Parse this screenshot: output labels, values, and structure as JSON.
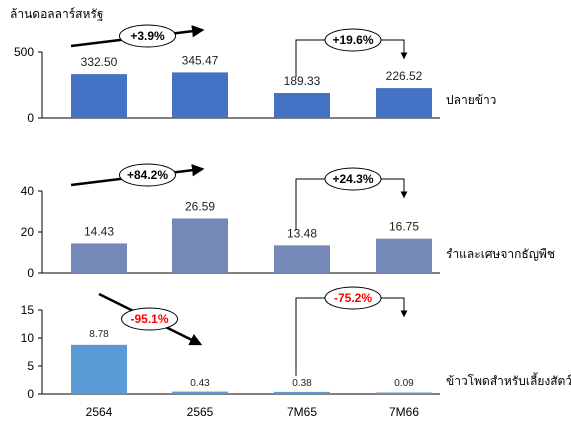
{
  "chart_data": {
    "type": "bar",
    "unit_label": "ล้านดอลลาร์สหรัฐ",
    "categories": [
      "2564",
      "2565",
      "7M65",
      "7M66"
    ],
    "panels": [
      {
        "name": "ปลายข้าว",
        "values": [
          332.5,
          345.47,
          189.33,
          226.52
        ],
        "value_labels": [
          "332.50",
          "345.47",
          "189.33",
          "226.52"
        ],
        "ylim": [
          0,
          500
        ],
        "yticks": [
          "0",
          "500"
        ],
        "ytick_values": [
          0,
          500
        ],
        "color": "#4472C4",
        "changes": [
          {
            "label": "+3.9%",
            "color": "#000000",
            "between": [
              0,
              1
            ],
            "style": "arrow-up"
          },
          {
            "label": "+19.6%",
            "color": "#000000",
            "between": [
              2,
              3
            ],
            "style": "bracket"
          }
        ]
      },
      {
        "name": "รำและเศษจากธัญพืช",
        "values": [
          14.43,
          26.59,
          13.48,
          16.75
        ],
        "value_labels": [
          "14.43",
          "26.59",
          "13.48",
          "16.75"
        ],
        "ylim": [
          0,
          40
        ],
        "yticks": [
          "0",
          "20",
          "40"
        ],
        "ytick_values": [
          0,
          20,
          40
        ],
        "color": "#7589B8",
        "changes": [
          {
            "label": "+84.2%",
            "color": "#000000",
            "between": [
              0,
              1
            ],
            "style": "arrow-up"
          },
          {
            "label": "+24.3%",
            "color": "#000000",
            "between": [
              2,
              3
            ],
            "style": "bracket"
          }
        ]
      },
      {
        "name": "ข้าวโพดสำหรับเลี้ยงสัตว์",
        "values": [
          8.78,
          0.43,
          0.38,
          0.09
        ],
        "value_labels": [
          "8.78",
          "0.43",
          "0.38",
          "0.09"
        ],
        "ylim": [
          0,
          15
        ],
        "yticks": [
          "0",
          "5",
          "10",
          "15"
        ],
        "ytick_values": [
          0,
          5,
          10,
          15
        ],
        "color": "#5B9BD5",
        "changes": [
          {
            "label": "-95.1%",
            "color": "#FF0000",
            "between": [
              0,
              1
            ],
            "style": "arrow-down"
          },
          {
            "label": "-75.2%",
            "color": "#FF0000",
            "between": [
              2,
              3
            ],
            "style": "bracket"
          }
        ]
      }
    ]
  }
}
